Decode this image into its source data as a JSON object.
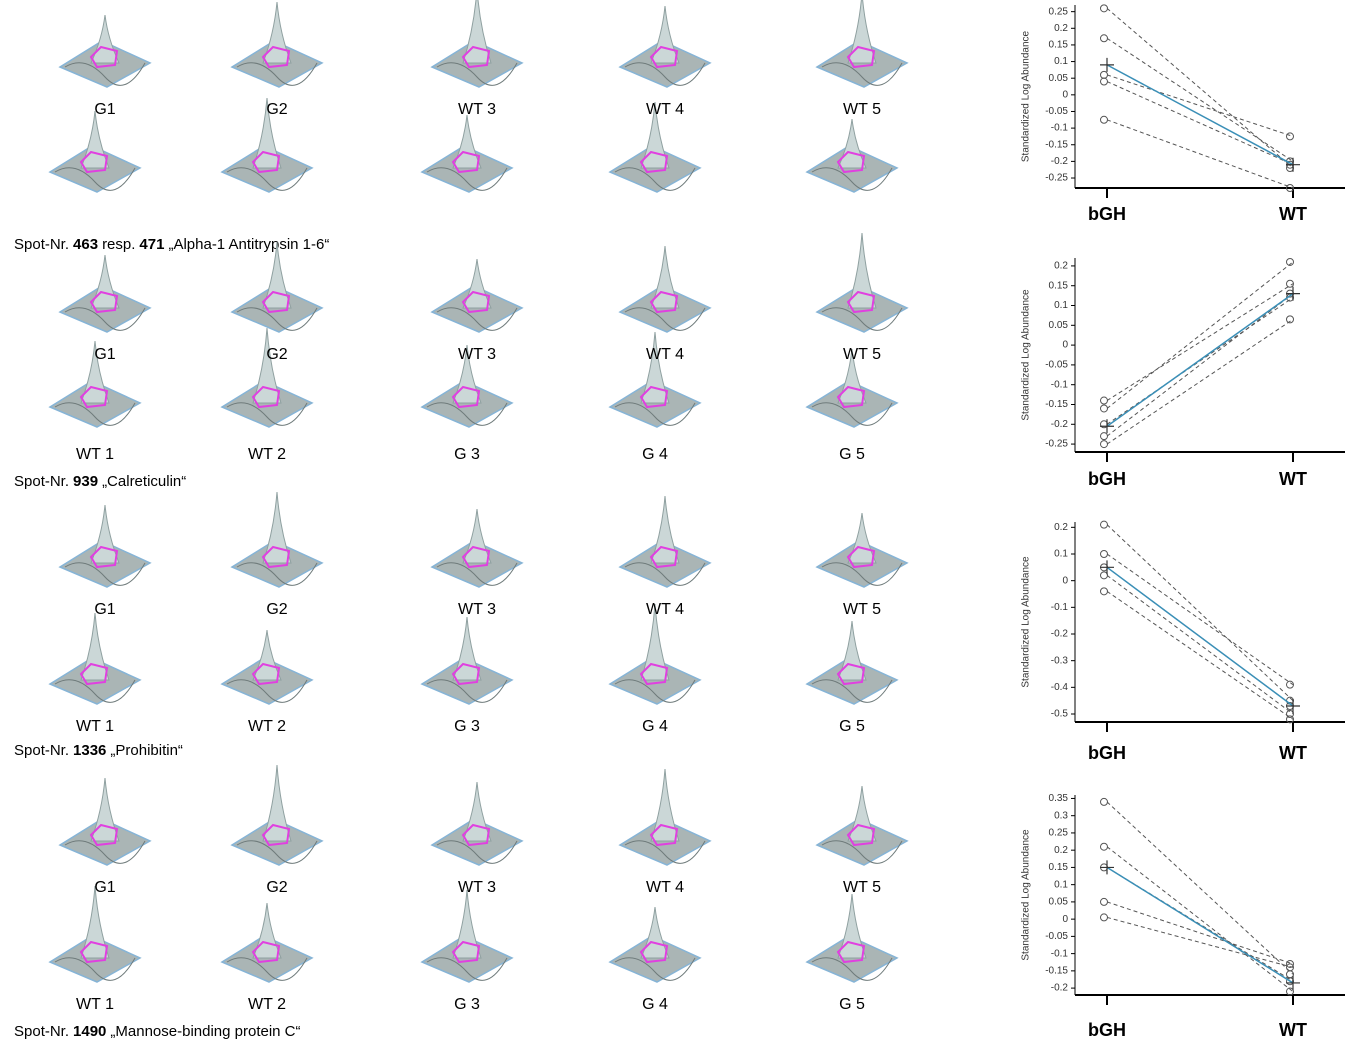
{
  "panels": [
    {
      "row1": [
        "G1",
        "G2",
        "WT 3",
        "WT 4",
        "WT 5"
      ],
      "caption": {
        "prefix": "Spot-Nr.",
        "spots": [
          "463",
          "471"
        ],
        "joiner": "resp.",
        "name": "„Alpha-1 Antitrypsin 1-6“"
      }
    },
    {
      "row1": [
        "G1",
        "G2",
        "WT 3",
        "WT 4",
        "WT 5"
      ],
      "row2": [
        "WT 1",
        "WT 2",
        "G 3",
        "G 4",
        "G 5"
      ],
      "caption": {
        "prefix": "Spot-Nr.",
        "spots": [
          "939"
        ],
        "name": "„Calreticulin“"
      }
    },
    {
      "row1": [
        "G1",
        "G2",
        "WT 3",
        "WT 4",
        "WT 5"
      ],
      "row2": [
        "WT 1",
        "WT 2",
        "G 3",
        "G 4",
        "G 5"
      ],
      "caption": {
        "prefix": "Spot-Nr.",
        "spots": [
          "1336"
        ],
        "name": "„Prohibitin“"
      }
    },
    {
      "row1": [
        "G1",
        "G2",
        "WT 3",
        "WT 4",
        "WT 5"
      ],
      "row2": [
        "WT 1",
        "WT 2",
        "G 3",
        "G 4",
        "G 5"
      ],
      "caption": {
        "prefix": "Spot-Nr.",
        "spots": [
          "1490"
        ],
        "name": "„Mannose-binding protein C“"
      }
    }
  ],
  "chart_data": [
    {
      "type": "line",
      "y_label": "Standardized Log Abundance",
      "categories": [
        "bGH",
        "WT"
      ],
      "ylim": [
        -0.28,
        0.27
      ],
      "yticks": [
        -0.25,
        -0.2,
        -0.15,
        -0.1,
        -0.05,
        0,
        0.05,
        0.1,
        0.15,
        0.2,
        0.25
      ],
      "series": [
        {
          "color": "#555555",
          "dash": true,
          "values": [
            0.26,
            -0.22
          ]
        },
        {
          "color": "#555555",
          "dash": true,
          "values": [
            0.17,
            -0.2
          ]
        },
        {
          "color": "#555555",
          "dash": true,
          "values": [
            0.06,
            -0.125
          ]
        },
        {
          "color": "#555555",
          "dash": true,
          "values": [
            0.04,
            -0.21
          ]
        },
        {
          "color": "#555555",
          "dash": true,
          "values": [
            -0.075,
            -0.28
          ]
        },
        {
          "color": "#3a8fb7",
          "mean": true,
          "values": [
            0.09,
            -0.21
          ]
        }
      ]
    },
    {
      "type": "line",
      "y_label": "Standardized Log Abundance",
      "categories": [
        "bGH",
        "WT"
      ],
      "ylim": [
        -0.27,
        0.22
      ],
      "yticks": [
        -0.25,
        -0.2,
        -0.15,
        -0.1,
        -0.05,
        0,
        0.05,
        0.1,
        0.15,
        0.2
      ],
      "series": [
        {
          "color": "#555555",
          "dash": true,
          "values": [
            -0.14,
            0.155
          ]
        },
        {
          "color": "#555555",
          "dash": true,
          "values": [
            -0.16,
            0.21
          ]
        },
        {
          "color": "#555555",
          "dash": true,
          "values": [
            -0.2,
            0.12
          ]
        },
        {
          "color": "#555555",
          "dash": true,
          "values": [
            -0.23,
            0.13
          ]
        },
        {
          "color": "#555555",
          "dash": true,
          "values": [
            -0.25,
            0.065
          ]
        },
        {
          "color": "#3a8fb7",
          "mean": true,
          "values": [
            -0.205,
            0.13
          ]
        }
      ]
    },
    {
      "type": "line",
      "y_label": "Standardized Log Abundance",
      "categories": [
        "bGH",
        "WT"
      ],
      "ylim": [
        -0.53,
        0.22
      ],
      "yticks": [
        -0.5,
        -0.4,
        -0.3,
        -0.2,
        -0.1,
        0,
        0.1,
        0.2
      ],
      "series": [
        {
          "color": "#555555",
          "dash": true,
          "values": [
            0.21,
            -0.45
          ]
        },
        {
          "color": "#555555",
          "dash": true,
          "values": [
            0.1,
            -0.39
          ]
        },
        {
          "color": "#555555",
          "dash": true,
          "values": [
            0.05,
            -0.47
          ]
        },
        {
          "color": "#555555",
          "dash": true,
          "values": [
            0.02,
            -0.5
          ]
        },
        {
          "color": "#555555",
          "dash": true,
          "values": [
            -0.04,
            -0.52
          ]
        },
        {
          "color": "#3a8fb7",
          "mean": true,
          "values": [
            0.05,
            -0.47
          ]
        }
      ]
    },
    {
      "type": "line",
      "y_label": "Standardized Log Abundance",
      "categories": [
        "bGH",
        "WT"
      ],
      "ylim": [
        -0.22,
        0.36
      ],
      "yticks": [
        -0.2,
        -0.15,
        -0.1,
        -0.05,
        0,
        0.05,
        0.1,
        0.15,
        0.2,
        0.25,
        0.3,
        0.35
      ],
      "series": [
        {
          "color": "#555555",
          "dash": true,
          "values": [
            0.34,
            -0.16
          ]
        },
        {
          "color": "#555555",
          "dash": true,
          "values": [
            0.21,
            -0.21
          ]
        },
        {
          "color": "#555555",
          "dash": true,
          "values": [
            0.15,
            -0.18
          ]
        },
        {
          "color": "#555555",
          "dash": true,
          "values": [
            0.05,
            -0.13
          ]
        },
        {
          "color": "#555555",
          "dash": true,
          "values": [
            0.005,
            -0.14
          ]
        },
        {
          "color": "#3a8fb7",
          "mean": true,
          "values": [
            0.15,
            -0.185
          ]
        }
      ]
    }
  ]
}
